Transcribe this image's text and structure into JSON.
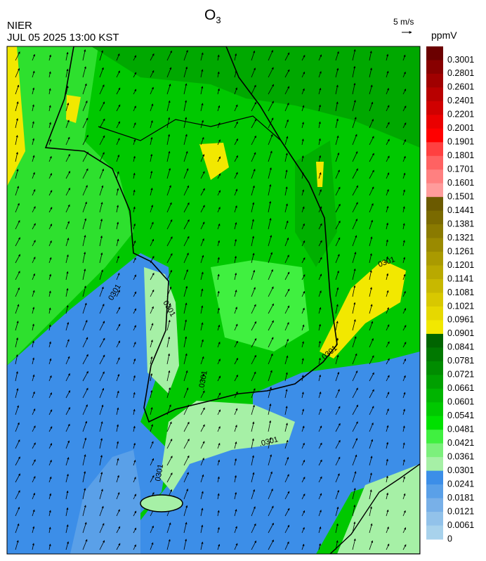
{
  "header": {
    "title": "O",
    "title_subscript": "3",
    "agency": "NIER",
    "datetime": "JUL 05 2025 13:00 KST",
    "wind_scale": "5 m/s",
    "unit": "ppmV"
  },
  "colorbar": {
    "levels": [
      0.3001,
      0.2801,
      0.2601,
      0.2401,
      0.2201,
      0.2001,
      0.1901,
      0.1801,
      0.1701,
      0.1601,
      0.1501,
      0.1441,
      0.1381,
      0.1321,
      0.1261,
      0.1201,
      0.1141,
      0.1081,
      0.1021,
      0.0961,
      0.0901,
      0.0841,
      0.0781,
      0.0721,
      0.0661,
      0.0601,
      0.0541,
      0.0481,
      0.0421,
      0.0361,
      0.0301,
      0.0241,
      0.0181,
      0.0121,
      0.0061,
      0
    ],
    "colors": [
      "#6b0000",
      "#880000",
      "#a00000",
      "#b80000",
      "#d00000",
      "#ea0000",
      "#ff0000",
      "#ff4040",
      "#ff6262",
      "#ff8080",
      "#ff9c9c",
      "#6b5a00",
      "#7a6a00",
      "#8a7a00",
      "#9a8a00",
      "#aa9a00",
      "#b9a900",
      "#c8b800",
      "#d8c800",
      "#e6d800",
      "#f2e800",
      "#006400",
      "#007800",
      "#008c00",
      "#00a000",
      "#00b400",
      "#00c800",
      "#00e000",
      "#40f040",
      "#7cf07c",
      "#a6f0a6",
      "#3c8ee8",
      "#5aa0e8",
      "#78b0e8",
      "#92c2ea",
      "#a8d2ec"
    ]
  },
  "contour_labels": [
    "0301",
    "0301",
    "0301",
    ".0301",
    ".0301",
    "0301",
    "0301"
  ]
}
